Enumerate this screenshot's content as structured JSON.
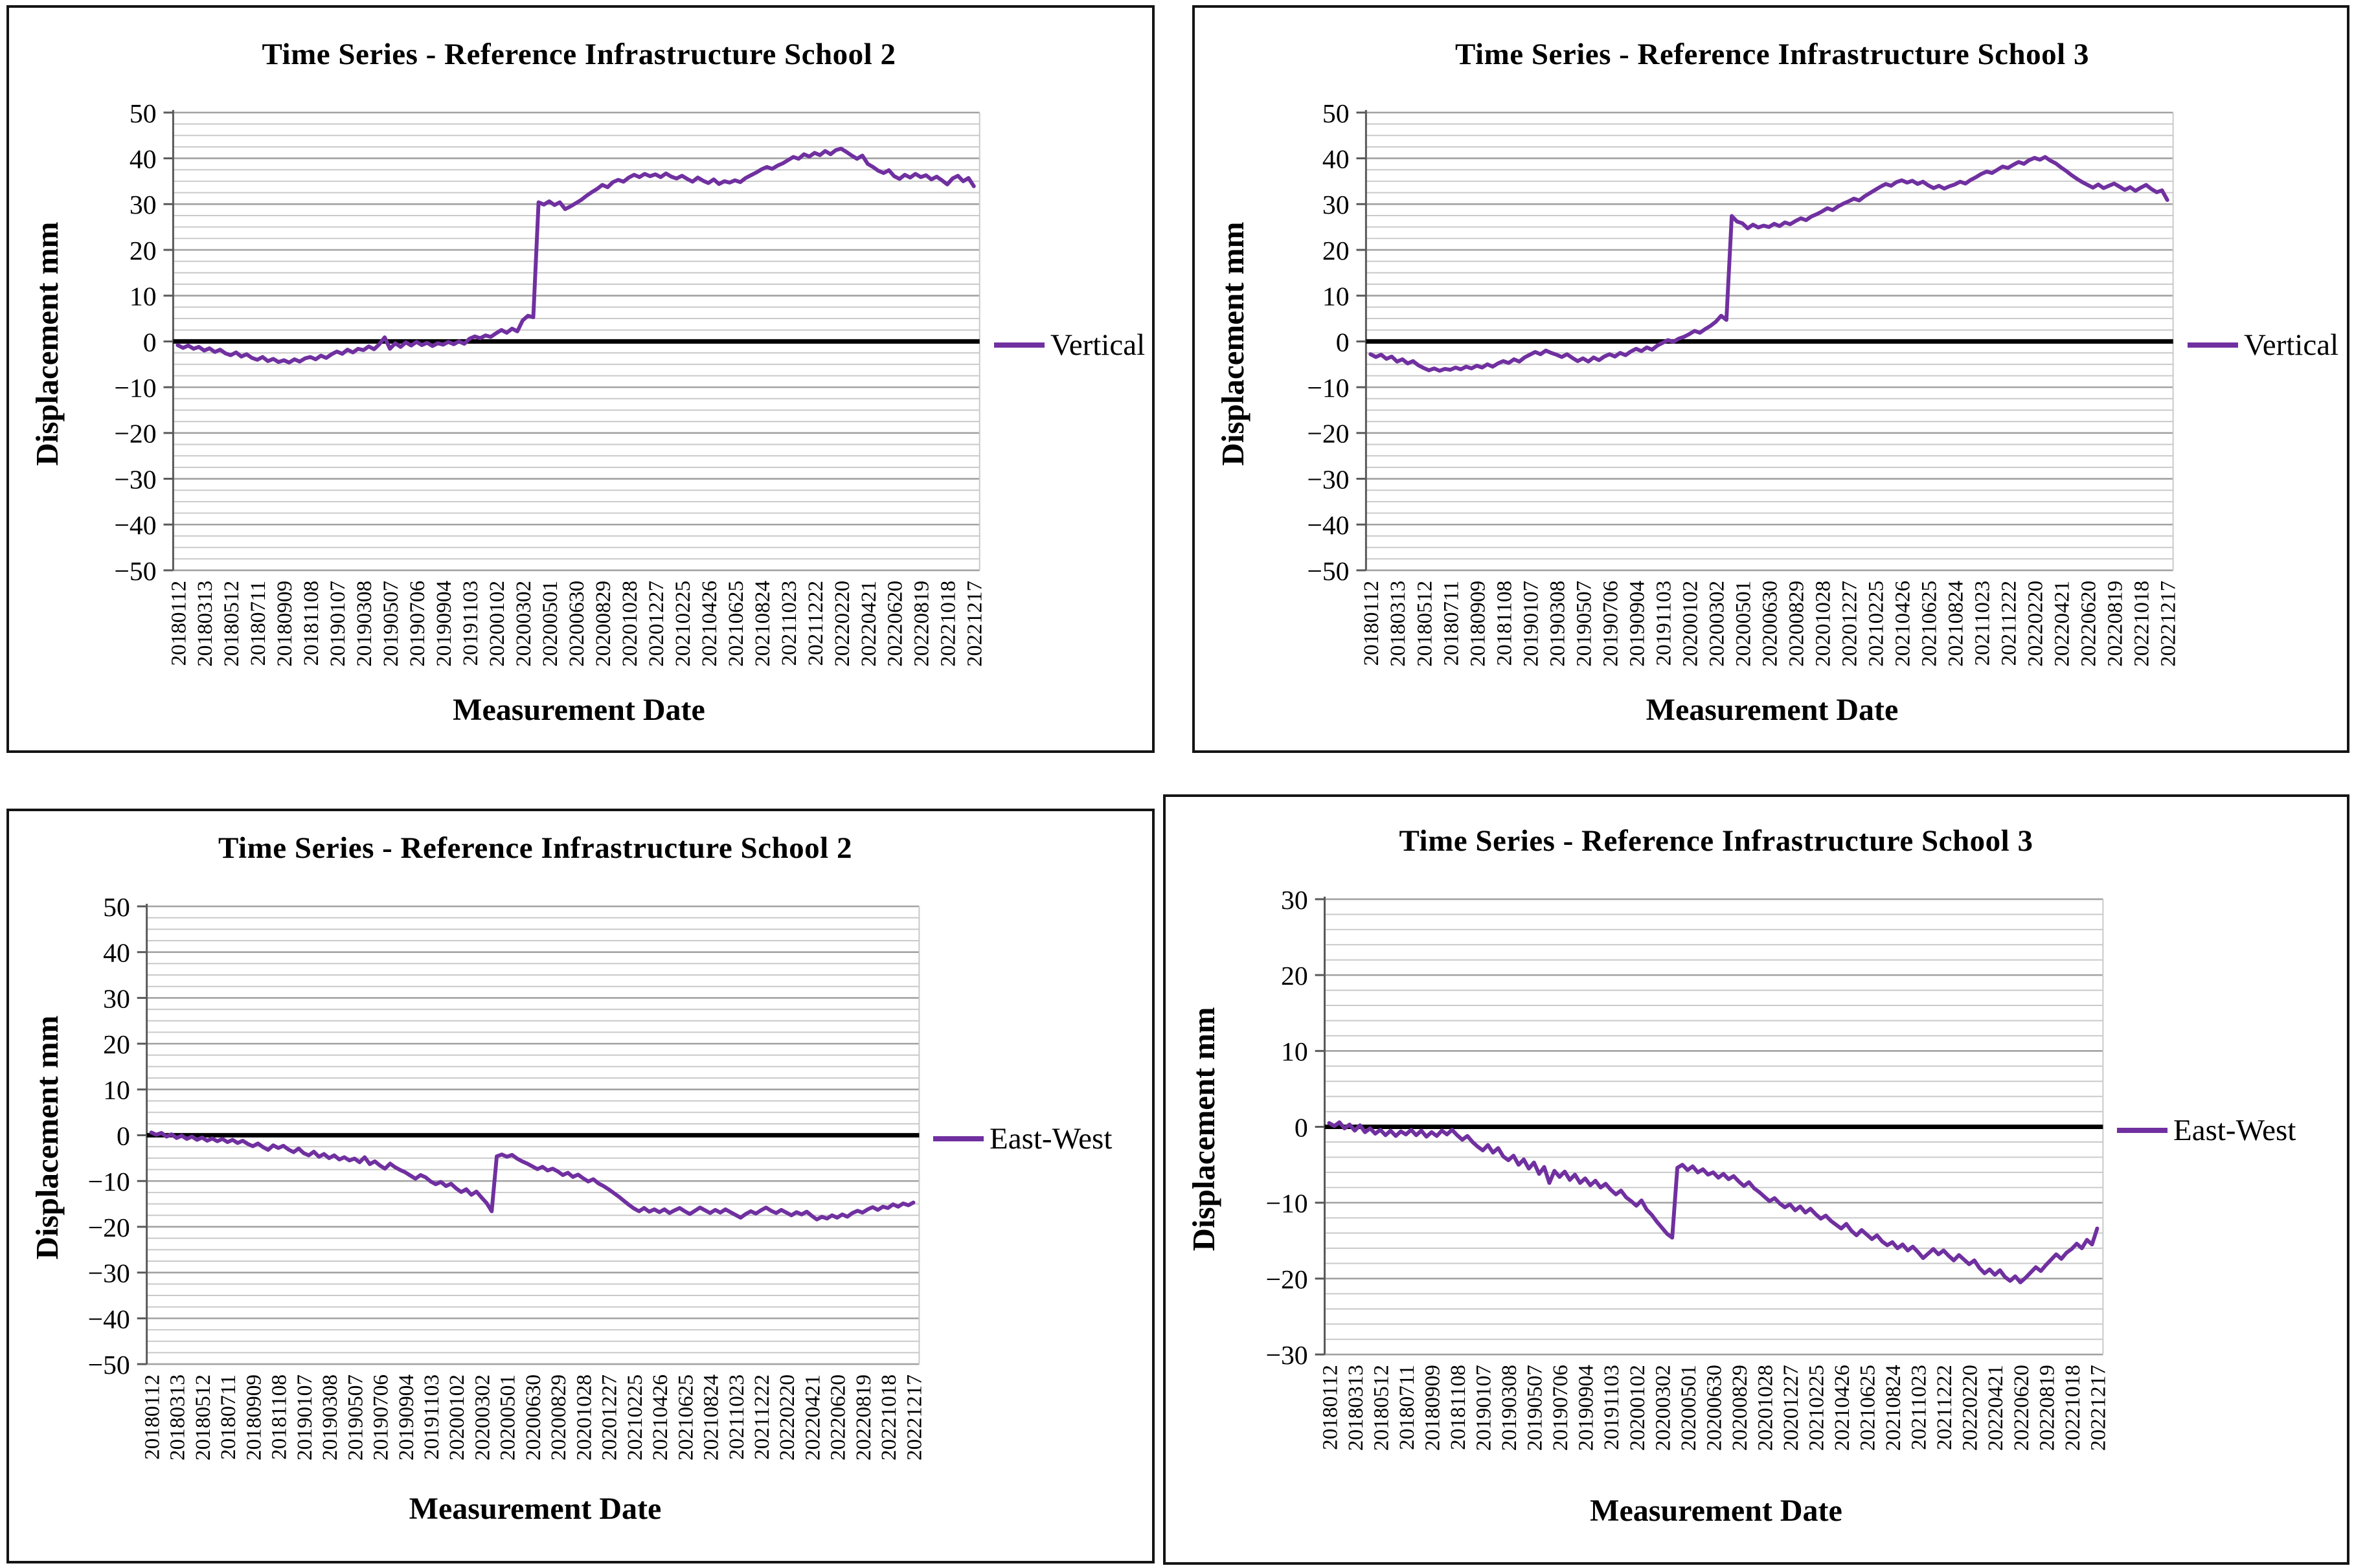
{
  "colors": {
    "series": "#7030A0",
    "zero_line": "#000000",
    "minor_grid": "#c9c9c9",
    "major_grid": "#a2a2a2",
    "axis": "#595959",
    "box_border": "#141414",
    "text": "#000000",
    "background": "#ffffff"
  },
  "shared": {
    "x_axis_title": "Measurement Date",
    "y_axis_title": "Displacement  mm"
  },
  "chart_data": {
    "type": "line",
    "x_tick_labels": [
      "20180112",
      "20180313",
      "20180512",
      "20180711",
      "20180909",
      "20181108",
      "20190107",
      "20190308",
      "20190507",
      "20190706",
      "20190904",
      "20191103",
      "20200102",
      "20200302",
      "20200501",
      "20200630",
      "20200829",
      "20201028",
      "20201227",
      "20210225",
      "20210426",
      "20210625",
      "20210824",
      "20211023",
      "20211222",
      "20220220",
      "20220421",
      "20220620",
      "20220819",
      "20221018",
      "20221217"
    ],
    "charts": [
      {
        "title": "Time Series - Reference Infrastructure School 2",
        "legend": "Vertical",
        "y_min": -50,
        "y_max": 50,
        "y_major": 10,
        "y_minor": 2.5,
        "y_tick_labels": [
          "50",
          "40",
          "30",
          "20",
          "10",
          "0",
          "−10",
          "−20",
          "−30",
          "−40",
          "−50"
        ],
        "values": [
          -0.8,
          -1.4,
          -0.9,
          -1.6,
          -1.2,
          -2.0,
          -1.5,
          -2.3,
          -1.8,
          -2.6,
          -3.0,
          -2.4,
          -3.3,
          -2.8,
          -3.6,
          -4.0,
          -3.4,
          -4.3,
          -3.8,
          -4.5,
          -4.1,
          -4.6,
          -3.9,
          -4.4,
          -3.7,
          -3.4,
          -3.9,
          -3.1,
          -3.6,
          -2.8,
          -2.2,
          -2.7,
          -1.8,
          -2.4,
          -1.6,
          -1.9,
          -1.1,
          -1.7,
          -0.6,
          0.9,
          -1.6,
          -0.4,
          -1.2,
          -0.2,
          -0.9,
          -0.1,
          -0.8,
          -0.3,
          -1.0,
          -0.4,
          -0.7,
          -0.1,
          -0.6,
          0.0,
          -0.5,
          0.6,
          1.1,
          0.7,
          1.3,
          1.0,
          1.8,
          2.5,
          1.9,
          2.8,
          2.2,
          4.6,
          5.6,
          5.3,
          30.4,
          29.9,
          30.6,
          29.8,
          30.4,
          28.9,
          29.5,
          30.2,
          30.9,
          31.8,
          32.6,
          33.3,
          34.2,
          33.7,
          34.8,
          35.3,
          34.9,
          35.8,
          36.4,
          35.9,
          36.6,
          36.1,
          36.5,
          35.9,
          36.7,
          36.0,
          35.6,
          36.2,
          35.5,
          34.9,
          35.8,
          35.1,
          34.6,
          35.4,
          34.4,
          35.0,
          34.7,
          35.2,
          34.8,
          35.7,
          36.3,
          36.9,
          37.6,
          38.1,
          37.7,
          38.4,
          38.9,
          39.6,
          40.3,
          39.9,
          40.9,
          40.4,
          41.2,
          40.7,
          41.6,
          40.9,
          41.8,
          42.1,
          41.4,
          40.6,
          39.9,
          40.6,
          38.8,
          38.1,
          37.3,
          36.8,
          37.4,
          36.1,
          35.5,
          36.4,
          35.8,
          36.6,
          35.9,
          36.3,
          35.4,
          36.0,
          35.2,
          34.3,
          35.6,
          36.2,
          35.0,
          35.7,
          33.9
        ]
      },
      {
        "title": "Time Series - Reference Infrastructure School 3",
        "legend": "Vertical",
        "y_min": -50,
        "y_max": 50,
        "y_major": 10,
        "y_minor": 2.5,
        "y_tick_labels": [
          "50",
          "40",
          "30",
          "20",
          "10",
          "0",
          "−10",
          "−20",
          "−30",
          "−40",
          "−50"
        ],
        "values": [
          -2.8,
          -3.4,
          -2.9,
          -3.8,
          -3.3,
          -4.4,
          -3.9,
          -4.8,
          -4.3,
          -5.2,
          -5.8,
          -6.3,
          -5.9,
          -6.4,
          -6.0,
          -6.2,
          -5.7,
          -6.1,
          -5.5,
          -5.9,
          -5.3,
          -5.7,
          -5.0,
          -5.5,
          -4.8,
          -4.3,
          -4.7,
          -3.9,
          -4.4,
          -3.5,
          -2.9,
          -2.3,
          -2.8,
          -2.0,
          -2.5,
          -2.9,
          -3.4,
          -2.8,
          -3.6,
          -4.3,
          -3.7,
          -4.4,
          -3.5,
          -4.1,
          -3.3,
          -2.8,
          -3.3,
          -2.5,
          -3.0,
          -2.2,
          -1.6,
          -2.1,
          -1.3,
          -1.8,
          -0.9,
          -0.3,
          0.3,
          -0.1,
          0.6,
          1.0,
          1.6,
          2.3,
          1.9,
          2.7,
          3.4,
          4.3,
          5.6,
          4.7,
          27.4,
          26.2,
          25.8,
          24.7,
          25.5,
          24.9,
          25.3,
          25.0,
          25.7,
          25.2,
          26.0,
          25.6,
          26.3,
          26.9,
          26.5,
          27.3,
          27.8,
          28.4,
          29.1,
          28.7,
          29.5,
          30.1,
          30.6,
          31.2,
          30.8,
          31.7,
          32.4,
          33.1,
          33.8,
          34.4,
          34.0,
          34.8,
          35.2,
          34.7,
          35.1,
          34.4,
          34.9,
          34.1,
          33.5,
          34.0,
          33.4,
          33.9,
          34.3,
          34.9,
          34.5,
          35.3,
          35.9,
          36.6,
          37.1,
          36.8,
          37.5,
          38.2,
          37.9,
          38.6,
          39.2,
          38.8,
          39.6,
          40.1,
          39.7,
          40.3,
          39.5,
          38.9,
          38.0,
          37.2,
          36.3,
          35.5,
          34.8,
          34.2,
          33.6,
          34.3,
          33.5,
          34.0,
          34.5,
          33.8,
          33.1,
          33.7,
          32.9,
          33.6,
          34.2,
          33.3,
          32.6,
          33.0,
          30.9
        ]
      },
      {
        "title": "Time Series - Reference Infrastructure School 2",
        "legend": "East-West",
        "y_min": -50,
        "y_max": 50,
        "y_major": 10,
        "y_minor": 2.5,
        "y_tick_labels": [
          "50",
          "40",
          "30",
          "20",
          "10",
          "0",
          "−10",
          "−20",
          "−30",
          "−40",
          "−50"
        ],
        "values": [
          0.6,
          0.1,
          0.5,
          -0.3,
          0.2,
          -0.6,
          -0.1,
          -0.8,
          -0.3,
          -1.0,
          -0.5,
          -1.2,
          -0.7,
          -1.3,
          -0.8,
          -1.5,
          -1.0,
          -1.7,
          -1.2,
          -1.9,
          -2.4,
          -1.8,
          -2.6,
          -3.2,
          -2.2,
          -2.8,
          -2.3,
          -3.1,
          -3.7,
          -2.9,
          -3.9,
          -4.4,
          -3.6,
          -4.7,
          -4.1,
          -5.0,
          -4.4,
          -5.3,
          -4.8,
          -5.5,
          -5.1,
          -5.9,
          -4.8,
          -6.3,
          -5.7,
          -6.6,
          -7.3,
          -6.2,
          -7.0,
          -7.6,
          -8.1,
          -8.8,
          -9.5,
          -8.7,
          -9.2,
          -10.1,
          -10.7,
          -10.2,
          -11.1,
          -10.6,
          -11.6,
          -12.4,
          -11.8,
          -13.0,
          -12.3,
          -13.6,
          -14.8,
          -16.6,
          -4.6,
          -4.2,
          -4.7,
          -4.3,
          -5.1,
          -5.7,
          -6.2,
          -6.8,
          -7.4,
          -6.9,
          -7.7,
          -7.3,
          -7.9,
          -8.7,
          -8.2,
          -9.1,
          -8.6,
          -9.4,
          -10.1,
          -9.6,
          -10.5,
          -11.1,
          -11.8,
          -12.6,
          -13.4,
          -14.3,
          -15.2,
          -16.0,
          -16.6,
          -15.9,
          -16.7,
          -16.2,
          -16.8,
          -16.2,
          -17.0,
          -16.4,
          -15.9,
          -16.6,
          -17.2,
          -16.5,
          -15.8,
          -16.4,
          -17.0,
          -16.3,
          -16.9,
          -16.2,
          -16.8,
          -17.4,
          -18.0,
          -17.2,
          -16.6,
          -17.1,
          -16.4,
          -15.8,
          -16.5,
          -17.0,
          -16.3,
          -16.9,
          -17.5,
          -16.8,
          -17.3,
          -16.7,
          -17.6,
          -18.4,
          -17.8,
          -18.2,
          -17.5,
          -18.0,
          -17.3,
          -17.8,
          -17.0,
          -16.5,
          -16.9,
          -16.2,
          -15.7,
          -16.3,
          -15.6,
          -15.9,
          -15.1,
          -15.6,
          -14.9,
          -15.3,
          -14.7
        ]
      },
      {
        "title": "Time Series - Reference Infrastructure School 3",
        "legend": "East-West",
        "y_min": -30,
        "y_max": 30,
        "y_major": 10,
        "y_minor": 2,
        "y_tick_labels": [
          "30",
          "20",
          "10",
          "0",
          "−10",
          "−20",
          "−30"
        ],
        "values": [
          0.5,
          0.1,
          0.6,
          -0.2,
          0.3,
          -0.5,
          0.2,
          -0.7,
          -0.2,
          -0.9,
          -0.4,
          -1.1,
          -0.5,
          -1.2,
          -0.6,
          -1.0,
          -0.4,
          -1.1,
          -0.5,
          -1.3,
          -0.7,
          -1.2,
          -0.5,
          -1.0,
          -0.4,
          -1.1,
          -1.7,
          -1.2,
          -2.0,
          -2.6,
          -3.1,
          -2.4,
          -3.4,
          -2.8,
          -3.9,
          -4.4,
          -3.8,
          -5.0,
          -4.3,
          -5.5,
          -4.7,
          -6.2,
          -5.3,
          -7.4,
          -5.8,
          -6.6,
          -5.9,
          -7.0,
          -6.3,
          -7.4,
          -6.8,
          -7.7,
          -7.1,
          -8.0,
          -7.5,
          -8.3,
          -8.9,
          -8.4,
          -9.3,
          -9.8,
          -10.4,
          -9.7,
          -10.9,
          -11.6,
          -12.5,
          -13.3,
          -14.1,
          -14.6,
          -5.4,
          -5.0,
          -5.7,
          -5.2,
          -6.0,
          -5.6,
          -6.3,
          -6.0,
          -6.7,
          -6.2,
          -6.9,
          -6.5,
          -7.2,
          -7.8,
          -7.3,
          -8.1,
          -8.6,
          -9.2,
          -9.8,
          -9.4,
          -10.1,
          -10.6,
          -10.2,
          -11.0,
          -10.5,
          -11.3,
          -10.8,
          -11.5,
          -12.1,
          -11.7,
          -12.4,
          -12.9,
          -13.4,
          -12.8,
          -13.7,
          -14.3,
          -13.6,
          -14.2,
          -14.8,
          -14.3,
          -15.1,
          -15.6,
          -15.2,
          -16.0,
          -15.5,
          -16.3,
          -15.8,
          -16.5,
          -17.3,
          -16.7,
          -16.1,
          -16.8,
          -16.3,
          -17.0,
          -17.6,
          -16.9,
          -17.5,
          -18.1,
          -17.6,
          -18.6,
          -19.3,
          -18.8,
          -19.5,
          -18.9,
          -19.8,
          -20.3,
          -19.7,
          -20.5,
          -19.9,
          -19.2,
          -18.5,
          -19.0,
          -18.2,
          -17.5,
          -16.8,
          -17.4,
          -16.6,
          -16.1,
          -15.4,
          -16.0,
          -14.9,
          -15.5,
          -13.4
        ]
      }
    ]
  }
}
